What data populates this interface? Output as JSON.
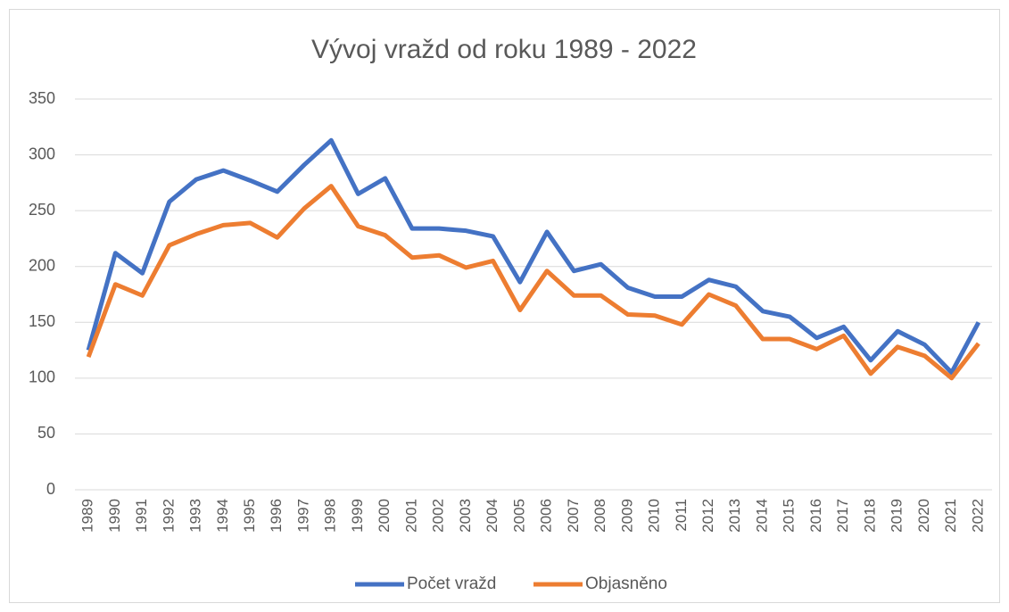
{
  "chart_data": {
    "type": "line",
    "title": "Vývoj vražd od roku 1989 - 2022",
    "categories": [
      "1989",
      "1990",
      "1991",
      "1992",
      "1993",
      "1994",
      "1995",
      "1996",
      "1997",
      "1998",
      "1999",
      "2000",
      "2001",
      "2002",
      "2003",
      "2004",
      "2005",
      "2006",
      "2007",
      "2008",
      "2009",
      "2010",
      "2011",
      "2012",
      "2013",
      "2014",
      "2015",
      "2016",
      "2017",
      "2018",
      "2019",
      "2020",
      "2021",
      "2022"
    ],
    "series": [
      {
        "name": "Počet vražd",
        "color": "#4472c4",
        "values": [
          125,
          212,
          194,
          258,
          278,
          286,
          277,
          267,
          291,
          313,
          265,
          279,
          234,
          234,
          232,
          227,
          186,
          231,
          196,
          202,
          181,
          173,
          173,
          188,
          182,
          160,
          155,
          136,
          146,
          116,
          142,
          130,
          105,
          150
        ]
      },
      {
        "name": "Objasněno",
        "color": "#ed7d31",
        "values": [
          119,
          184,
          174,
          219,
          229,
          237,
          239,
          226,
          252,
          272,
          236,
          228,
          208,
          210,
          199,
          205,
          161,
          196,
          174,
          174,
          157,
          156,
          148,
          175,
          165,
          135,
          135,
          126,
          138,
          104,
          128,
          120,
          100,
          131
        ]
      }
    ],
    "ylim": [
      0,
      350
    ],
    "yticks": [
      0,
      50,
      100,
      150,
      200,
      250,
      300,
      350
    ],
    "grid": true,
    "legend": "bottom"
  }
}
